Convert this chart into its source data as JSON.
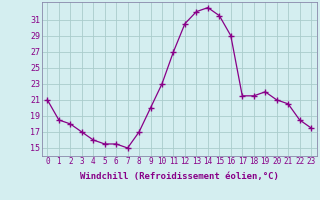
{
  "x": [
    0,
    1,
    2,
    3,
    4,
    5,
    6,
    7,
    8,
    9,
    10,
    11,
    12,
    13,
    14,
    15,
    16,
    17,
    18,
    19,
    20,
    21,
    22,
    23
  ],
  "y": [
    21,
    18.5,
    18,
    17,
    16,
    15.5,
    15.5,
    15,
    17,
    20,
    23,
    27,
    30.5,
    32,
    32.5,
    31.5,
    29,
    21.5,
    21.5,
    22,
    21,
    20.5,
    18.5,
    17.5
  ],
  "line_color": "#880088",
  "marker": "+",
  "marker_size": 4,
  "bg_color": "#d4eef0",
  "grid_color": "#aacccc",
  "xlabel": "Windchill (Refroidissement éolien,°C)",
  "xlabel_fontsize": 6.5,
  "ytick_labels": [
    "15",
    "17",
    "19",
    "21",
    "23",
    "25",
    "27",
    "29",
    "31"
  ],
  "ytick_values": [
    15,
    17,
    19,
    21,
    23,
    25,
    27,
    29,
    31
  ],
  "xlim": [
    -0.5,
    23.5
  ],
  "ylim": [
    14.0,
    33.2
  ],
  "xtick_fontsize": 5.5,
  "ytick_fontsize": 6.0,
  "tick_color": "#880088",
  "label_color": "#880088",
  "spine_color": "#8888aa"
}
